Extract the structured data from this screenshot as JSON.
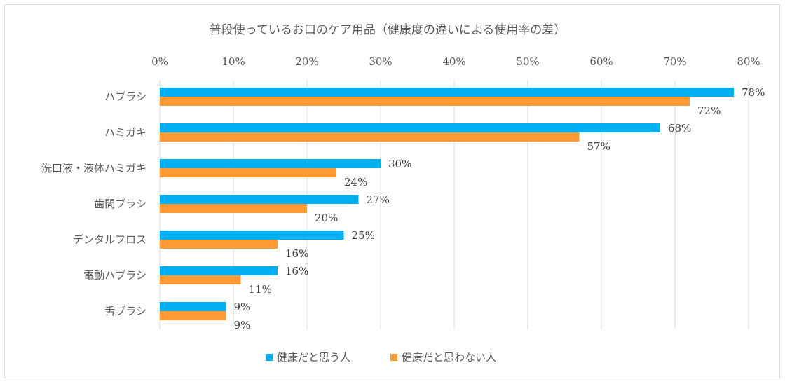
{
  "chart_data": {
    "type": "bar",
    "orientation": "horizontal",
    "title": "普段使っているお口のケア用品（健康度の違いによる使用率の差）",
    "xlabel": "",
    "ylabel": "",
    "xlim": [
      0,
      80
    ],
    "x_ticks": [
      0,
      10,
      20,
      30,
      40,
      50,
      60,
      70,
      80
    ],
    "x_tick_labels": [
      "0%",
      "10%",
      "20%",
      "30%",
      "40%",
      "50%",
      "60%",
      "70%",
      "80%"
    ],
    "x_axis_position": "top",
    "grid": true,
    "legend_position": "bottom",
    "categories": [
      "ハブラシ",
      "ハミガキ",
      "洗口液・液体ハミガキ",
      "歯間ブラシ",
      "デンタルフロス",
      "電動ハブラシ",
      "舌ブラシ"
    ],
    "series": [
      {
        "name": "健康だと思う人",
        "color": "#00b0f0",
        "values": [
          78,
          68,
          30,
          27,
          25,
          16,
          9
        ],
        "labels": [
          "78%",
          "68%",
          "30%",
          "27%",
          "25%",
          "16%",
          "9%"
        ]
      },
      {
        "name": "健康だと思わない人",
        "color": "#ff9933",
        "values": [
          72,
          57,
          24,
          20,
          16,
          11,
          9
        ],
        "labels": [
          "72%",
          "57%",
          "24%",
          "20%",
          "16%",
          "11%",
          "9%"
        ]
      }
    ]
  }
}
